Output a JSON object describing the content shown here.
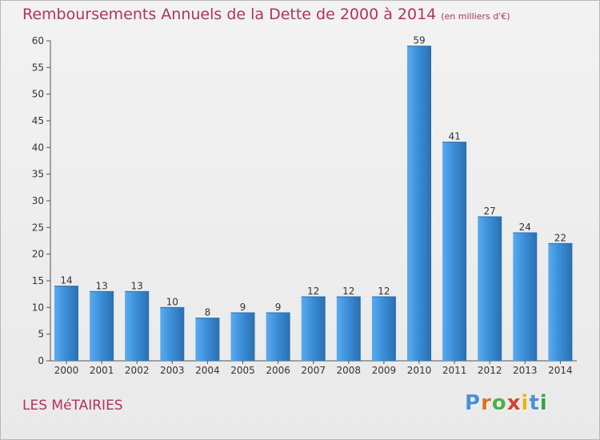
{
  "header": {
    "title": "Remboursements Annuels de la Dette de 2000 à 2014",
    "subtitle": "(en milliers d'€)"
  },
  "footer": {
    "commune": "LES MéTAIRIES",
    "brand_letters": [
      "P",
      "r",
      "o",
      "x",
      "i",
      "t",
      "i"
    ],
    "brand_colors": [
      "#4a90d9",
      "#e0711b",
      "#4bb04a",
      "#d6402f",
      "#e6b51a",
      "#4a90d9",
      "#3aa04a"
    ]
  },
  "colors": {
    "bar": "#3b8fd8",
    "bar_light": "#5aaaf0",
    "axis": "#555555",
    "grid_tick": "#333333"
  },
  "chart_data": {
    "type": "bar",
    "title": "Remboursements Annuels de la Dette de 2000 à 2014",
    "subtitle": "(en milliers d'€)",
    "categories": [
      "2000",
      "2001",
      "2002",
      "2003",
      "2004",
      "2005",
      "2006",
      "2007",
      "2008",
      "2009",
      "2010",
      "2011",
      "2012",
      "2013",
      "2014"
    ],
    "values": [
      14,
      13,
      13,
      10,
      8,
      9,
      9,
      12,
      12,
      12,
      59,
      41,
      27,
      24,
      22
    ],
    "ylim": [
      0,
      60
    ],
    "yticks": [
      0,
      5,
      10,
      15,
      20,
      25,
      30,
      35,
      40,
      45,
      50,
      55,
      60
    ],
    "grid": false,
    "data_labels": true
  }
}
